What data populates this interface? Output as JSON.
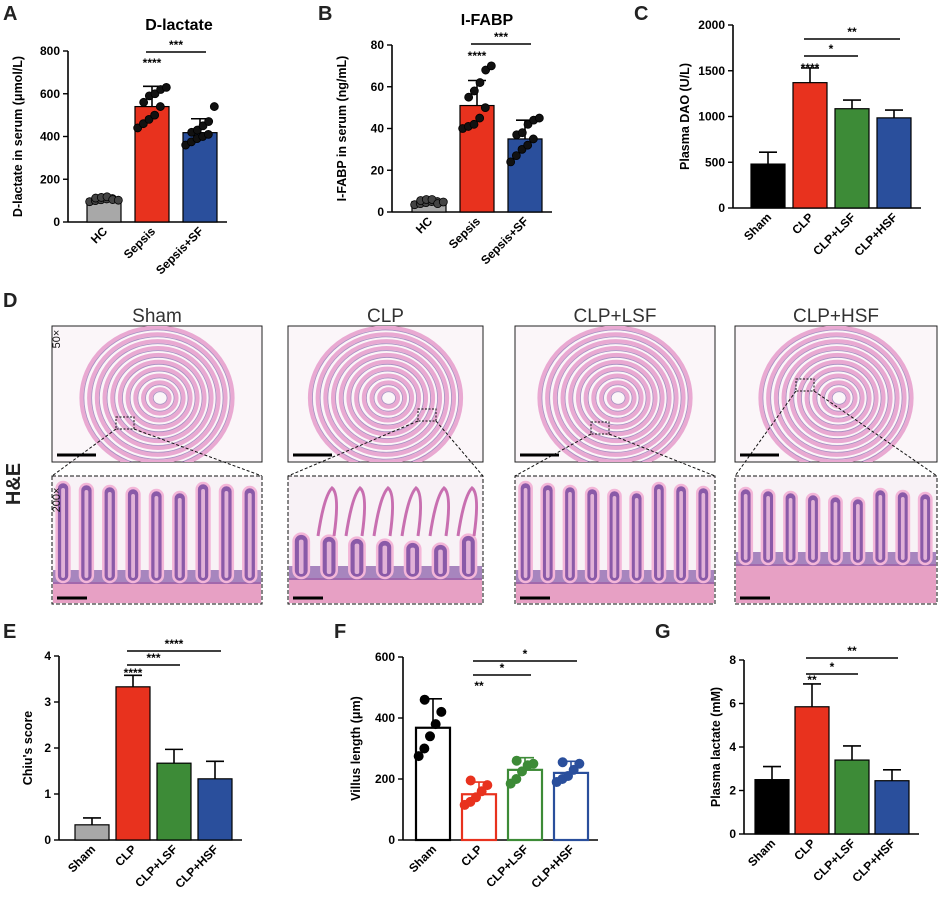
{
  "chart_data": [
    {
      "panel": "A",
      "type": "bar",
      "title": "D-lactate",
      "ylabel": "D-lactate in serum (μmol/L)",
      "categories": [
        "HC",
        "Sepsis",
        "Sepsis+SF"
      ],
      "values": [
        108,
        540,
        418
      ],
      "errors": [
        10,
        95,
        65
      ],
      "colors": [
        "#a8a8a8",
        "#e8321e",
        "#2a4f9c"
      ],
      "points": [
        [
          95,
          100,
          104,
          108,
          110,
          112,
          115,
          118,
          105,
          102
        ],
        [
          440,
          460,
          480,
          500,
          540,
          560,
          590,
          600,
          620,
          630
        ],
        [
          360,
          375,
          390,
          400,
          410,
          420,
          430,
          450,
          470,
          540
        ]
      ],
      "ylim": [
        0,
        800
      ],
      "yticks": [
        0,
        200,
        400,
        600,
        800
      ],
      "significance": [
        {
          "from": 1,
          "to": 2,
          "label": "***"
        },
        {
          "over": 1,
          "label": "****"
        }
      ]
    },
    {
      "panel": "B",
      "type": "bar",
      "title": "I-FABP",
      "ylabel": "I-FABP in serum (ng/mL)",
      "categories": [
        "HC",
        "Sepsis",
        "Sepsis+SF"
      ],
      "values": [
        5,
        51,
        35
      ],
      "errors": [
        1,
        12,
        9
      ],
      "colors": [
        "#a8a8a8",
        "#e8321e",
        "#2a4f9c"
      ],
      "points": [
        [
          3.5,
          4,
          4.5,
          5,
          5,
          5.5,
          6,
          6,
          4,
          4.8
        ],
        [
          40,
          41,
          42,
          45,
          50,
          55,
          58,
          62,
          68,
          70
        ],
        [
          24,
          27,
          30,
          32,
          35,
          37,
          38,
          42,
          44,
          45
        ]
      ],
      "ylim": [
        0,
        80
      ],
      "yticks": [
        0,
        20,
        40,
        60,
        80
      ],
      "significance": [
        {
          "from": 1,
          "to": 2,
          "label": "***"
        },
        {
          "over": 1,
          "label": "****"
        }
      ]
    },
    {
      "panel": "C",
      "type": "bar",
      "ylabel": "Plasma DAO (U/L)",
      "categories": [
        "Sham",
        "CLP",
        "CLP+LSF",
        "CLP+HSF"
      ],
      "values": [
        480,
        1370,
        1085,
        985
      ],
      "errors": [
        130,
        160,
        95,
        85
      ],
      "colors": [
        "#000000",
        "#e8321e",
        "#3d8b37",
        "#2a4f9c"
      ],
      "ylim": [
        0,
        2000
      ],
      "yticks": [
        0,
        500,
        1000,
        1500,
        2000
      ],
      "significance": [
        {
          "from": 1,
          "to": 3,
          "label": "**"
        },
        {
          "from": 1,
          "to": 2,
          "label": "*"
        },
        {
          "over": 1,
          "label": "****"
        }
      ]
    },
    {
      "panel": "E",
      "type": "bar",
      "ylabel": "Chiu's score",
      "categories": [
        "Sham",
        "CLP",
        "CLP+LSF",
        "CLP+HSF"
      ],
      "values": [
        0.33,
        3.33,
        1.67,
        1.33
      ],
      "errors": [
        0.15,
        0.25,
        0.3,
        0.38
      ],
      "colors": [
        "#a8a8a8",
        "#e8321e",
        "#3d8b37",
        "#2a4f9c"
      ],
      "ylim": [
        0,
        4
      ],
      "yticks": [
        0,
        1,
        2,
        3,
        4
      ],
      "significance": [
        {
          "from": 1,
          "to": 3,
          "label": "****"
        },
        {
          "from": 1,
          "to": 2,
          "label": "***"
        },
        {
          "over": 1,
          "label": "****"
        }
      ]
    },
    {
      "panel": "F",
      "type": "bar",
      "ylabel": "Villus length (μm)",
      "categories": [
        "Sham",
        "CLP",
        "CLP+LSF",
        "CLP+HSF"
      ],
      "values": [
        368,
        150,
        230,
        220
      ],
      "errors": [
        95,
        40,
        40,
        38
      ],
      "colors": [
        "#000000",
        "#e8321e",
        "#3d8b37",
        "#2a4f9c"
      ],
      "fill": "#ffffff",
      "points": [
        [
          275,
          300,
          340,
          380,
          420,
          460
        ],
        [
          115,
          125,
          140,
          160,
          180,
          195
        ],
        [
          185,
          200,
          225,
          245,
          250,
          260
        ],
        [
          190,
          200,
          210,
          230,
          250,
          255
        ]
      ],
      "ylim": [
        0,
        600
      ],
      "yticks": [
        0,
        200,
        400,
        600
      ],
      "significance": [
        {
          "from": 1,
          "to": 3,
          "label": "*"
        },
        {
          "from": 1,
          "to": 2,
          "label": "*"
        },
        {
          "over": 1,
          "label": "**"
        }
      ]
    },
    {
      "panel": "G",
      "type": "bar",
      "ylabel": "Plasma lactate (mM)",
      "categories": [
        "Sham",
        "CLP",
        "CLP+LSF",
        "CLP+HSF"
      ],
      "values": [
        2.5,
        5.85,
        3.4,
        2.45
      ],
      "errors": [
        0.6,
        1.05,
        0.65,
        0.5
      ],
      "colors": [
        "#000000",
        "#e8321e",
        "#3d8b37",
        "#2a4f9c"
      ],
      "ylim": [
        0,
        8
      ],
      "yticks": [
        0,
        2,
        4,
        6,
        8
      ],
      "significance": [
        {
          "from": 1,
          "to": 3,
          "label": "**"
        },
        {
          "from": 1,
          "to": 2,
          "label": "*"
        },
        {
          "over": 1,
          "label": "**"
        }
      ]
    }
  ],
  "histology": {
    "panel": "D",
    "row_label": "H&E",
    "columns": [
      "Sham",
      "CLP",
      "CLP+LSF",
      "CLP+HSF"
    ],
    "top_magnification": "50×",
    "bottom_magnification": "200×"
  },
  "colors": {
    "he_pink": "#e9a9d2",
    "he_purple": "#6a3d96",
    "he_background": "#f8f2f6"
  }
}
